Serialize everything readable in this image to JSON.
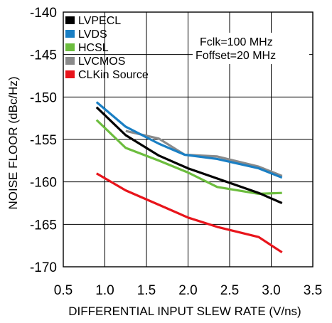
{
  "chart_data": {
    "type": "line",
    "title": "",
    "xlabel": "DIFFERENTIAL INPUT SLEW RATE (V/ns)",
    "ylabel": "NOISE FLOOR (dBc/Hz)",
    "xlim": [
      0.5,
      3.5
    ],
    "ylim": [
      -170,
      -140
    ],
    "xticks": [
      0.5,
      1.0,
      1.5,
      2.0,
      2.5,
      3.0,
      3.5
    ],
    "xtick_labels": [
      "0.5",
      "1.0",
      "1.5",
      "2.0",
      "2.5",
      "3.0",
      "3.5"
    ],
    "yticks": [
      -170,
      -165,
      -160,
      -155,
      -150,
      -145,
      -140
    ],
    "ytick_labels": [
      "-170",
      "-165",
      "-160",
      "-155",
      "-150",
      "-145",
      "-140"
    ],
    "grid": true,
    "legend_position": "top-left",
    "annotations": [
      "Fclk=100 MHz",
      "Foffset=20 MHz"
    ],
    "series": [
      {
        "name": "LVPECL",
        "color": "#000000",
        "x": [
          0.9,
          1.25,
          1.65,
          2.0,
          2.35,
          2.85,
          3.13
        ],
        "y": [
          -151.2,
          -154.5,
          -156.9,
          -158.4,
          -159.6,
          -161.3,
          -162.5
        ]
      },
      {
        "name": "LVDS",
        "color": "#1a7fc4",
        "x": [
          0.9,
          1.25,
          1.65,
          1.96,
          2.35,
          2.85,
          3.13
        ],
        "y": [
          -150.6,
          -153.5,
          -155.5,
          -156.8,
          -157.3,
          -158.4,
          -159.5
        ]
      },
      {
        "name": "HCSL",
        "color": "#6cbd3e",
        "x": [
          0.9,
          1.25,
          1.65,
          2.0,
          2.35,
          2.85,
          3.13
        ],
        "y": [
          -152.7,
          -156.0,
          -157.5,
          -158.9,
          -160.6,
          -161.4,
          -161.3
        ]
      },
      {
        "name": "LVCMOS",
        "color": "#8a8a8a",
        "x": [
          1.25,
          1.65,
          1.96,
          2.35,
          2.85,
          3.13
        ],
        "y": [
          -154.0,
          -154.9,
          -156.8,
          -157.0,
          -158.2,
          -159.3
        ]
      },
      {
        "name": "CLKin Source",
        "color": "#e8141b",
        "x": [
          0.9,
          1.25,
          1.65,
          2.0,
          2.35,
          2.85,
          3.13
        ],
        "y": [
          -159.0,
          -161.0,
          -162.7,
          -164.2,
          -165.3,
          -166.5,
          -168.3
        ]
      }
    ]
  }
}
